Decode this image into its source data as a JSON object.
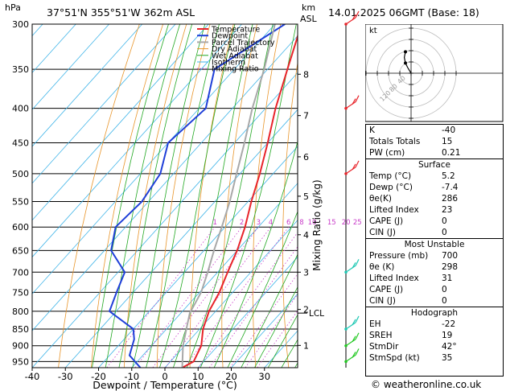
{
  "header": {
    "pressure_unit": "hPa",
    "location": "37°51'N  355°51'W  362m  ASL",
    "height_unit_top": "km",
    "height_unit_bottom": "ASL",
    "datetime": "14.01.2025  06GMT  (Base: 18)"
  },
  "chart_data": {
    "type": "line",
    "title": "",
    "xlabel": "Dewpoint / Temperature (°C)",
    "ylabel": "hPa",
    "right_axis_label": "Mixing Ratio (g/kg)",
    "xlim": [
      -40,
      40
    ],
    "ylim": [
      970,
      300
    ],
    "x_ticks": [
      -40,
      -30,
      -20,
      -10,
      0,
      10,
      20,
      30
    ],
    "pressure_levels": [
      300,
      350,
      400,
      450,
      500,
      550,
      600,
      650,
      700,
      750,
      800,
      850,
      900,
      950
    ],
    "height_km_ticks": [
      {
        "label": "8",
        "p": 356
      },
      {
        "label": "7",
        "p": 410
      },
      {
        "label": "6",
        "p": 472
      },
      {
        "label": "5",
        "p": 540
      },
      {
        "label": "4",
        "p": 616
      },
      {
        "label": "3",
        "p": 700
      },
      {
        "label": "2",
        "p": 795
      },
      {
        "label": "1",
        "p": 899
      }
    ],
    "lcl": {
      "label": "LCL",
      "p": 805
    },
    "mixing_ratio_labels": [
      "1",
      "2",
      "3",
      "4",
      "6",
      "8",
      "10",
      "15",
      "20",
      "25"
    ],
    "legend": [
      "Temperature",
      "Dewpoint",
      "Parcel Trajectory",
      "Dry Adiabat",
      "Wet Adiabat",
      "Isotherm",
      "Mixing Ratio"
    ],
    "legend_position": "top-center",
    "colors": {
      "temperature": "#e8242a",
      "dewpoint": "#1f3fd8",
      "parcel": "#a8a8a8",
      "dry_adiabat": "#e8952a",
      "wet_adiabat": "#22a822",
      "isotherm": "#3fb4e8",
      "mixing_ratio": "#c83cc8"
    },
    "series": [
      {
        "name": "Temperature",
        "points": [
          [
            5.2,
            970
          ],
          [
            7,
            950
          ],
          [
            5,
            900
          ],
          [
            1,
            850
          ],
          [
            -2,
            800
          ],
          [
            -4,
            750
          ],
          [
            -7,
            700
          ],
          [
            -10,
            650
          ],
          [
            -14,
            600
          ],
          [
            -19,
            550
          ],
          [
            -24,
            500
          ],
          [
            -30,
            450
          ],
          [
            -37,
            400
          ],
          [
            -44,
            350
          ],
          [
            -52,
            300
          ]
        ]
      },
      {
        "name": "Dewpoint",
        "points": [
          [
            -7.4,
            970
          ],
          [
            -14,
            930
          ],
          [
            -17,
            880
          ],
          [
            -20,
            850
          ],
          [
            -32,
            800
          ],
          [
            -35,
            750
          ],
          [
            -38,
            700
          ],
          [
            -48,
            650
          ],
          [
            -53,
            600
          ],
          [
            -52,
            550
          ],
          [
            -54,
            500
          ],
          [
            -60,
            450
          ],
          [
            -58,
            400
          ],
          [
            -66,
            350
          ],
          [
            -57,
            300
          ]
        ]
      },
      {
        "name": "Parcel Trajectory",
        "points": [
          [
            5.2,
            970
          ],
          [
            -0.5,
            900
          ],
          [
            -4,
            850
          ],
          [
            -7.3,
            805
          ],
          [
            -9.5,
            750
          ],
          [
            -13,
            700
          ],
          [
            -17,
            650
          ],
          [
            -21,
            600
          ],
          [
            -25.5,
            550
          ],
          [
            -31,
            500
          ],
          [
            -37,
            450
          ],
          [
            -44,
            400
          ],
          [
            -51,
            350
          ],
          [
            -60,
            300
          ]
        ]
      }
    ],
    "hodograph": {
      "label": "kt",
      "ring_labels": [
        "40",
        "80",
        "120"
      ],
      "points": [
        [
          0,
          0
        ],
        [
          -3,
          -5
        ],
        [
          -5,
          -9
        ],
        [
          -6,
          -14
        ],
        [
          -5,
          -19
        ]
      ]
    },
    "wind_barbs": [
      {
        "p": 300,
        "color": "#e8242a"
      },
      {
        "p": 400,
        "color": "#e8242a"
      },
      {
        "p": 500,
        "color": "#e8242a"
      },
      {
        "p": 700,
        "color": "#20c8b4"
      },
      {
        "p": 850,
        "color": "#20c8b4"
      },
      {
        "p": 900,
        "color": "#22c822"
      },
      {
        "p": 950,
        "color": "#22c822"
      }
    ]
  },
  "indices": {
    "rows1": [
      {
        "k": "K",
        "v": "-40"
      },
      {
        "k": "Totals Totals",
        "v": "15"
      },
      {
        "k": "PW (cm)",
        "v": "0.21"
      }
    ],
    "surface_title": "Surface",
    "surface": [
      {
        "k": "Temp (°C)",
        "v": "5.2"
      },
      {
        "k": "Dewp (°C)",
        "v": "-7.4"
      },
      {
        "k": "θe(K)",
        "v": "286"
      },
      {
        "k": "Lifted Index",
        "v": "23"
      },
      {
        "k": "CAPE (J)",
        "v": "0"
      },
      {
        "k": "CIN (J)",
        "v": "0"
      }
    ],
    "mu_title": "Most Unstable",
    "mu": [
      {
        "k": "Pressure (mb)",
        "v": "700"
      },
      {
        "k": "θe (K)",
        "v": "298"
      },
      {
        "k": "Lifted Index",
        "v": "31"
      },
      {
        "k": "CAPE (J)",
        "v": "0"
      },
      {
        "k": "CIN (J)",
        "v": "0"
      }
    ],
    "hodo_title": "Hodograph",
    "hodo": [
      {
        "k": "EH",
        "v": "-22"
      },
      {
        "k": "SREH",
        "v": "19"
      },
      {
        "k": "StmDir",
        "v": "42°"
      },
      {
        "k": "StmSpd (kt)",
        "v": "35"
      }
    ]
  },
  "footer": {
    "copyright": "© weatheronline.co.uk"
  }
}
